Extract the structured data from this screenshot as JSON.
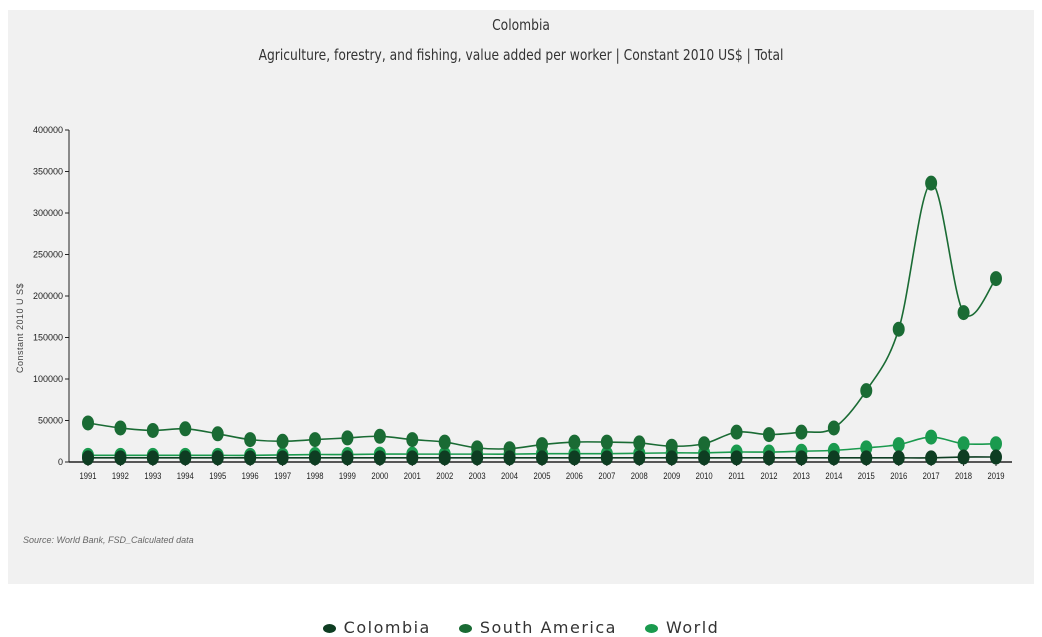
{
  "chart_data": {
    "type": "line",
    "title": "Colombia",
    "subtitle": "Agriculture, forestry, and fishing, value added per worker | Constant 2010 US$ | Total",
    "ylabel": "Constant 2010 U S$",
    "xlabel": "",
    "ylim": [
      0,
      400000
    ],
    "yticks": [
      "0",
      "50000",
      "100000",
      "150000",
      "200000",
      "250000",
      "300000",
      "350000",
      "400000"
    ],
    "x": [
      "1991",
      "1992",
      "1993",
      "1994",
      "1995",
      "1996",
      "1997",
      "1998",
      "1999",
      "2000",
      "2001",
      "2002",
      "2003",
      "2004",
      "2005",
      "2006",
      "2007",
      "2008",
      "2009",
      "2010",
      "2011",
      "2012",
      "2013",
      "2014",
      "2015",
      "2016",
      "2017",
      "2018",
      "2019"
    ],
    "grid": false,
    "legend_position": "bottom",
    "source": "Source: World Bank, FSD_Calculated data",
    "series": [
      {
        "name": "Colombia",
        "color": "#0e3d22",
        "values": [
          5000,
          5000,
          5000,
          5000,
          5000,
          5000,
          5000,
          5000,
          5000,
          5000,
          5000,
          5000,
          5000,
          5000,
          5000,
          5000,
          5000,
          5000,
          5000,
          5000,
          5000,
          5000,
          5000,
          5000,
          5000,
          5000,
          5000,
          6000,
          6000
        ]
      },
      {
        "name": "South America",
        "color": "#1a6b34",
        "values": [
          47000,
          41000,
          38000,
          40000,
          34000,
          27000,
          25000,
          27000,
          29000,
          31000,
          27000,
          24000,
          17000,
          16000,
          21000,
          24000,
          24000,
          23000,
          19000,
          22000,
          36000,
          33000,
          36000,
          41000,
          86000,
          160000,
          336000,
          180000,
          221000
        ]
      },
      {
        "name": "World",
        "color": "#1a9a4e",
        "values": [
          8000,
          8000,
          8000,
          8000,
          8000,
          8000,
          8500,
          9000,
          9000,
          9500,
          9500,
          9500,
          9500,
          9500,
          10000,
          10000,
          10000,
          10500,
          11000,
          11000,
          12000,
          12000,
          13000,
          14000,
          17000,
          21000,
          30000,
          22000,
          22000
        ]
      }
    ]
  }
}
